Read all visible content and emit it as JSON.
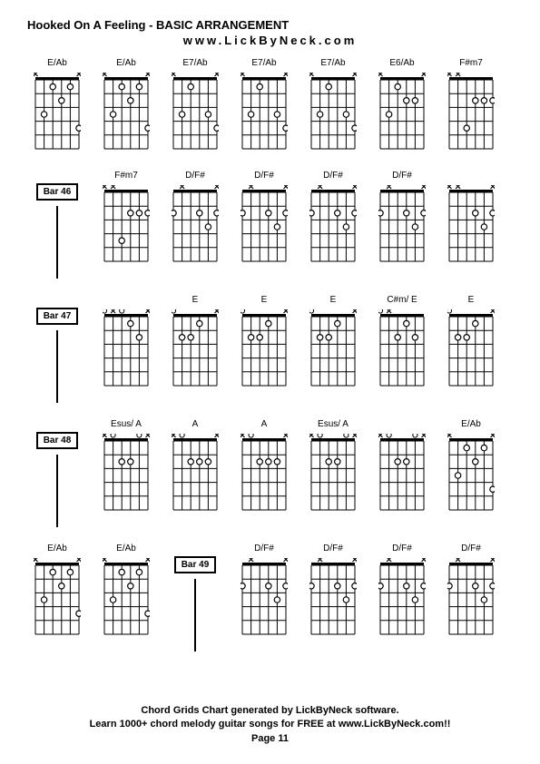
{
  "title": "Hooked On A Feeling - BASIC ARRANGEMENT",
  "subtitle": "www.LickByNeck.com",
  "footer_line1": "Chord Grids Chart generated by LickByNeck software.",
  "footer_line2": "Learn 1000+ chord melody guitar songs for FREE at www.LickByNeck.com!!",
  "page_label": "Page 11",
  "grid": {
    "strings": 6,
    "frets": 5,
    "width": 52,
    "height": 80,
    "nut_height": 3,
    "line_color": "#000000",
    "dot_radius": 3.2,
    "open_radius": 2.6
  },
  "rows": [
    [
      {
        "type": "chord",
        "label": "E/Ab",
        "top": [
          "x",
          "",
          "",
          "",
          "",
          "x"
        ],
        "dots": [
          [
            1,
            3
          ],
          [
            2,
            1
          ],
          [
            3,
            2
          ],
          [
            4,
            1
          ],
          [
            5,
            4
          ]
        ]
      },
      {
        "type": "chord",
        "label": "E/Ab",
        "top": [
          "x",
          "",
          "",
          "",
          "",
          "x"
        ],
        "dots": [
          [
            1,
            3
          ],
          [
            2,
            1
          ],
          [
            3,
            2
          ],
          [
            4,
            1
          ],
          [
            5,
            4
          ]
        ]
      },
      {
        "type": "chord",
        "label": "E7/Ab",
        "top": [
          "x",
          "",
          "",
          "",
          "",
          "x"
        ],
        "dots": [
          [
            1,
            3
          ],
          [
            2,
            1
          ],
          [
            4,
            3
          ],
          [
            5,
            4
          ]
        ]
      },
      {
        "type": "chord",
        "label": "E7/Ab",
        "top": [
          "x",
          "",
          "",
          "",
          "",
          "x"
        ],
        "dots": [
          [
            1,
            3
          ],
          [
            2,
            1
          ],
          [
            4,
            3
          ],
          [
            5,
            4
          ]
        ]
      },
      {
        "type": "chord",
        "label": "E7/Ab",
        "top": [
          "x",
          "",
          "",
          "",
          "",
          "x"
        ],
        "dots": [
          [
            1,
            3
          ],
          [
            2,
            1
          ],
          [
            4,
            3
          ],
          [
            5,
            4
          ]
        ]
      },
      {
        "type": "chord",
        "label": "E6/Ab",
        "top": [
          "x",
          "",
          "",
          "",
          "",
          "x"
        ],
        "dots": [
          [
            1,
            3
          ],
          [
            2,
            1
          ],
          [
            3,
            2
          ],
          [
            4,
            2
          ]
        ]
      },
      {
        "type": "chord",
        "label": "F#m7",
        "top": [
          "x",
          "x",
          "",
          "",
          "",
          ""
        ],
        "dots": [
          [
            2,
            4
          ],
          [
            3,
            2
          ],
          [
            4,
            2
          ],
          [
            5,
            2
          ]
        ]
      }
    ],
    [
      {
        "type": "bar",
        "label": "Bar 46"
      },
      {
        "type": "chord",
        "label": "F#m7",
        "top": [
          "x",
          "x",
          "",
          "",
          "",
          ""
        ],
        "dots": [
          [
            2,
            4
          ],
          [
            3,
            2
          ],
          [
            4,
            2
          ],
          [
            5,
            2
          ]
        ]
      },
      {
        "type": "chord",
        "label": "D/F#",
        "top": [
          "",
          "x",
          "",
          "",
          "",
          "x"
        ],
        "dots": [
          [
            0,
            2
          ],
          [
            3,
            2
          ],
          [
            4,
            3
          ],
          [
            5,
            2
          ]
        ]
      },
      {
        "type": "chord",
        "label": "D/F#",
        "top": [
          "",
          "x",
          "",
          "",
          "",
          "x"
        ],
        "dots": [
          [
            0,
            2
          ],
          [
            3,
            2
          ],
          [
            4,
            3
          ],
          [
            5,
            2
          ]
        ]
      },
      {
        "type": "chord",
        "label": "D/F#",
        "top": [
          "",
          "x",
          "",
          "",
          "",
          "x"
        ],
        "dots": [
          [
            0,
            2
          ],
          [
            3,
            2
          ],
          [
            4,
            3
          ],
          [
            5,
            2
          ]
        ]
      },
      {
        "type": "chord",
        "label": "D/F#",
        "top": [
          "",
          "x",
          "",
          "",
          "",
          "x"
        ],
        "dots": [
          [
            0,
            2
          ],
          [
            3,
            2
          ],
          [
            4,
            3
          ],
          [
            5,
            2
          ]
        ]
      },
      {
        "type": "chord",
        "label": "",
        "top": [
          "x",
          "x",
          "",
          "",
          "",
          "x"
        ],
        "dots": [
          [
            3,
            2
          ],
          [
            4,
            3
          ],
          [
            5,
            2
          ]
        ]
      }
    ],
    [
      {
        "type": "bar",
        "label": "Bar 47"
      },
      {
        "type": "chord",
        "label": "",
        "top": [
          "o",
          "x",
          "o",
          "",
          "",
          "x"
        ],
        "dots": [
          [
            3,
            1
          ],
          [
            4,
            2
          ]
        ]
      },
      {
        "type": "chord",
        "label": "E",
        "top": [
          "o",
          "",
          "",
          "",
          "",
          "x"
        ],
        "dots": [
          [
            1,
            2
          ],
          [
            2,
            2
          ],
          [
            3,
            1
          ]
        ]
      },
      {
        "type": "chord",
        "label": "E",
        "top": [
          "o",
          "",
          "",
          "",
          "",
          "x"
        ],
        "dots": [
          [
            1,
            2
          ],
          [
            2,
            2
          ],
          [
            3,
            1
          ]
        ]
      },
      {
        "type": "chord",
        "label": "E",
        "top": [
          "o",
          "",
          "",
          "",
          "",
          "x"
        ],
        "dots": [
          [
            1,
            2
          ],
          [
            2,
            2
          ],
          [
            3,
            1
          ]
        ]
      },
      {
        "type": "chord",
        "label": "C#m/ E",
        "top": [
          "o",
          "x",
          "",
          "",
          "",
          ""
        ],
        "dots": [
          [
            2,
            2
          ],
          [
            3,
            1
          ],
          [
            4,
            2
          ]
        ]
      },
      {
        "type": "chord",
        "label": "E",
        "top": [
          "o",
          "",
          "",
          "",
          "",
          "x"
        ],
        "dots": [
          [
            1,
            2
          ],
          [
            2,
            2
          ],
          [
            3,
            1
          ]
        ]
      }
    ],
    [
      {
        "type": "bar",
        "label": "Bar 48"
      },
      {
        "type": "chord",
        "label": "Esus/ A",
        "top": [
          "x",
          "o",
          "",
          "",
          "o",
          "x"
        ],
        "dots": [
          [
            2,
            2
          ],
          [
            3,
            2
          ]
        ]
      },
      {
        "type": "chord",
        "label": "A",
        "top": [
          "x",
          "o",
          "",
          "",
          "",
          "x"
        ],
        "dots": [
          [
            2,
            2
          ],
          [
            3,
            2
          ],
          [
            4,
            2
          ]
        ]
      },
      {
        "type": "chord",
        "label": "A",
        "top": [
          "x",
          "o",
          "",
          "",
          "",
          "x"
        ],
        "dots": [
          [
            2,
            2
          ],
          [
            3,
            2
          ],
          [
            4,
            2
          ]
        ]
      },
      {
        "type": "chord",
        "label": "Esus/ A",
        "top": [
          "x",
          "o",
          "",
          "",
          "o",
          "x"
        ],
        "dots": [
          [
            2,
            2
          ],
          [
            3,
            2
          ]
        ]
      },
      {
        "type": "chord",
        "label": "",
        "top": [
          "x",
          "o",
          "",
          "",
          "o",
          "x"
        ],
        "dots": [
          [
            2,
            2
          ],
          [
            3,
            2
          ]
        ]
      },
      {
        "type": "chord",
        "label": "E/Ab",
        "top": [
          "x",
          "",
          "",
          "",
          "",
          "x"
        ],
        "dots": [
          [
            1,
            3
          ],
          [
            2,
            1
          ],
          [
            3,
            2
          ],
          [
            4,
            1
          ],
          [
            5,
            4
          ]
        ]
      }
    ],
    [
      {
        "type": "chord",
        "label": "E/Ab",
        "top": [
          "x",
          "",
          "",
          "",
          "",
          "x"
        ],
        "dots": [
          [
            1,
            3
          ],
          [
            2,
            1
          ],
          [
            3,
            2
          ],
          [
            4,
            1
          ],
          [
            5,
            4
          ]
        ]
      },
      {
        "type": "chord",
        "label": "E/Ab",
        "top": [
          "x",
          "",
          "",
          "",
          "",
          "x"
        ],
        "dots": [
          [
            1,
            3
          ],
          [
            2,
            1
          ],
          [
            3,
            2
          ],
          [
            4,
            1
          ],
          [
            5,
            4
          ]
        ]
      },
      {
        "type": "bar",
        "label": "Bar 49"
      },
      {
        "type": "chord",
        "label": "D/F#",
        "top": [
          "",
          "x",
          "",
          "",
          "",
          "x"
        ],
        "dots": [
          [
            0,
            2
          ],
          [
            3,
            2
          ],
          [
            4,
            3
          ],
          [
            5,
            2
          ]
        ]
      },
      {
        "type": "chord",
        "label": "D/F#",
        "top": [
          "",
          "x",
          "",
          "",
          "",
          "x"
        ],
        "dots": [
          [
            0,
            2
          ],
          [
            3,
            2
          ],
          [
            4,
            3
          ],
          [
            5,
            2
          ]
        ]
      },
      {
        "type": "chord",
        "label": "D/F#",
        "top": [
          "",
          "x",
          "",
          "",
          "",
          "x"
        ],
        "dots": [
          [
            0,
            2
          ],
          [
            3,
            2
          ],
          [
            4,
            3
          ],
          [
            5,
            2
          ]
        ]
      },
      {
        "type": "chord",
        "label": "D/F#",
        "top": [
          "",
          "x",
          "",
          "",
          "",
          "x"
        ],
        "dots": [
          [
            0,
            2
          ],
          [
            3,
            2
          ],
          [
            4,
            3
          ],
          [
            5,
            2
          ]
        ]
      }
    ]
  ]
}
